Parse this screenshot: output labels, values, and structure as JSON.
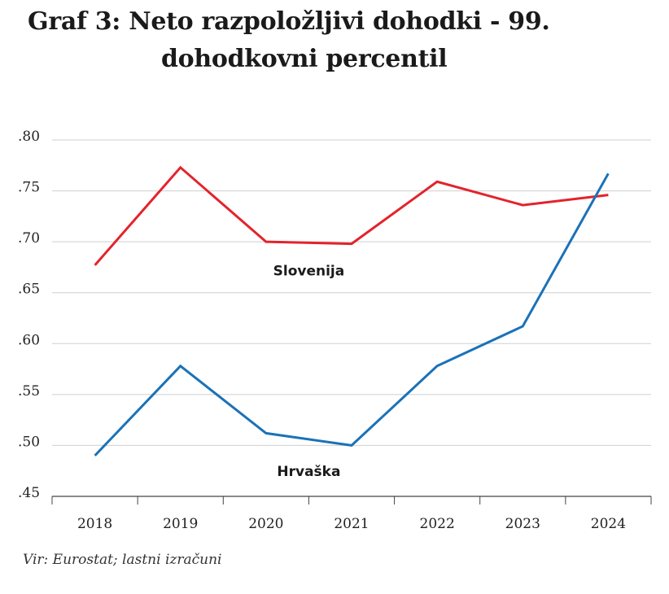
{
  "chart_data": {
    "type": "line",
    "title_line1": "Graf 3: Neto razpoložljivi dohodki - 99.",
    "title_line2": "dohodkovni percentil",
    "x": [
      "2018",
      "2019",
      "2020",
      "2021",
      "2022",
      "2023",
      "2024"
    ],
    "ylim": [
      0.45,
      0.8
    ],
    "yticks": [
      ".80",
      ".75",
      ".70",
      ".65",
      ".60",
      ".55",
      ".50",
      ".45"
    ],
    "grid": true,
    "series": [
      {
        "name": "Slovenija",
        "color": "#e3232c",
        "values": [
          0.677,
          0.773,
          0.7,
          0.698,
          0.759,
          0.736,
          0.746
        ]
      },
      {
        "name": "Hrvaška",
        "color": "#1a72b8",
        "values": [
          0.49,
          0.578,
          0.512,
          0.5,
          0.578,
          0.617,
          0.767
        ]
      }
    ],
    "source": "Vir: Eurostat; lastni izračuni"
  }
}
